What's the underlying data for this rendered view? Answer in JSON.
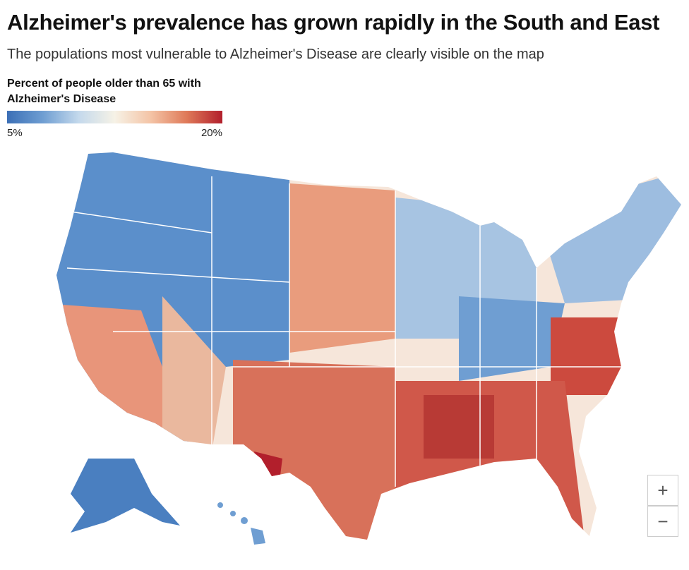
{
  "header": {
    "title": "Alzheimer's prevalence has grown rapidly in the South and East",
    "subtitle": "The populations most vulnerable to Alzheimer's Disease are clearly visible on the map"
  },
  "legend": {
    "title": "Percent of people older than 65 with Alzheimer's Disease",
    "min": {
      "value": 5,
      "label": "5%"
    },
    "max": {
      "value": 20,
      "label": "20%"
    },
    "colors": [
      "#3b6fb6",
      "#6f9ed2",
      "#c4d9ec",
      "#f6f2e6",
      "#f4c4a6",
      "#df7a59",
      "#b21f2c"
    ]
  },
  "controls": {
    "zoom_in": "+",
    "zoom_out": "−"
  }
}
